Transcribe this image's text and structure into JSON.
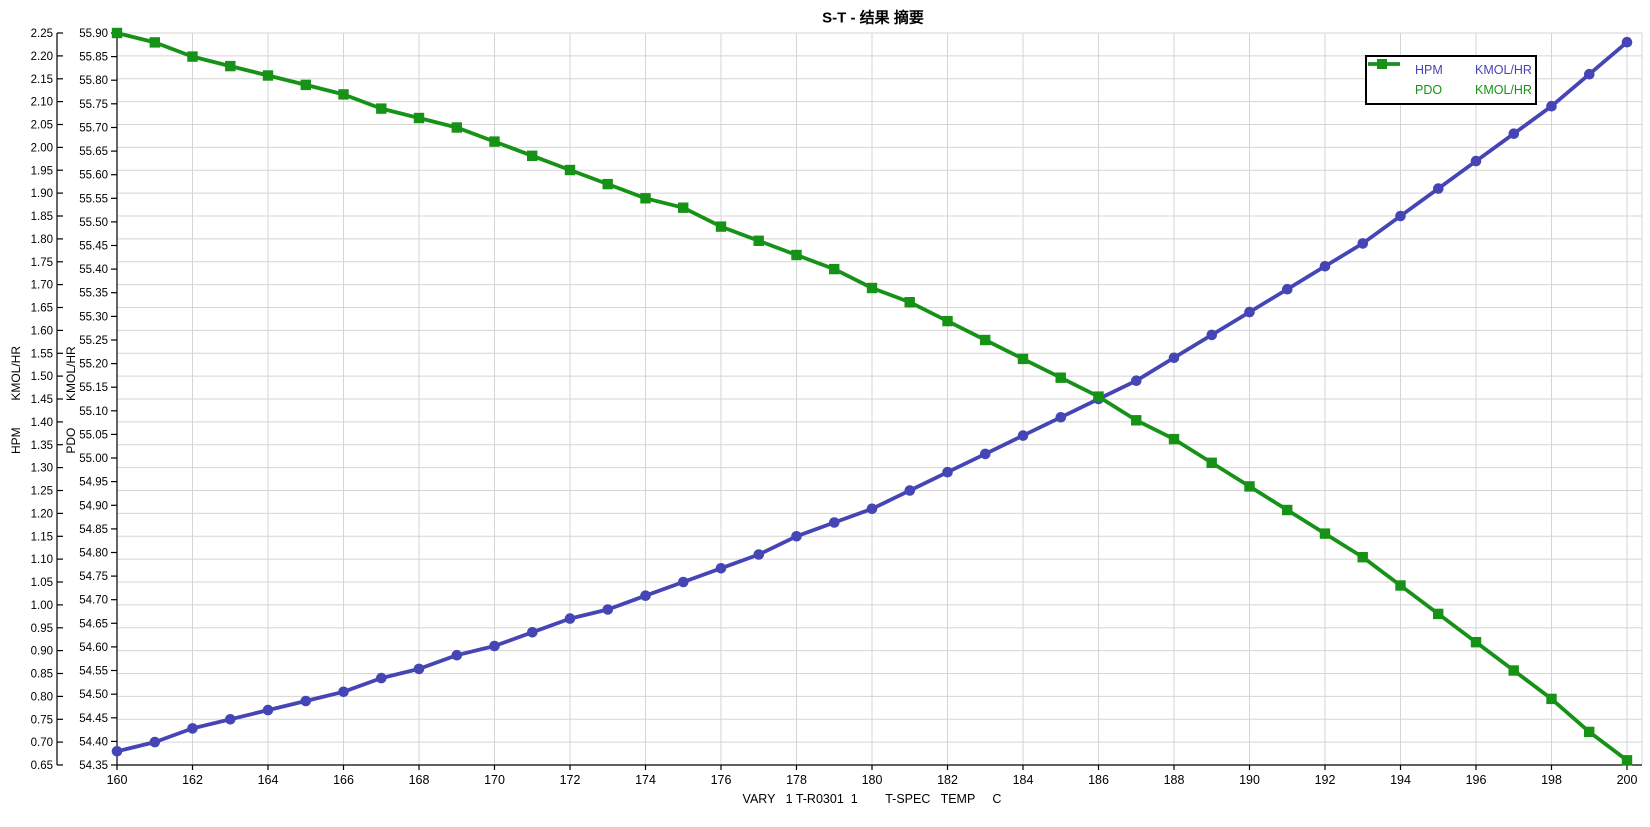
{
  "chart_data": {
    "type": "line",
    "title": "S-T - 结果 摘要",
    "grid": true,
    "legend_position": "top-right",
    "x_axis": {
      "title": "VARY   1 T-R0301  1        T-SPEC   TEMP     C",
      "min": 160,
      "max": 200,
      "tick_step": 2,
      "x": [
        160,
        161,
        162,
        163,
        164,
        165,
        166,
        167,
        168,
        169,
        170,
        171,
        172,
        173,
        174,
        175,
        176,
        177,
        178,
        179,
        180,
        181,
        182,
        183,
        184,
        185,
        186,
        187,
        188,
        189,
        190,
        191,
        192,
        193,
        194,
        195,
        196,
        197,
        198,
        199,
        200
      ]
    },
    "y_axis_outer": {
      "title": "HPM        KMOL/HR",
      "name": "HPM",
      "unit": "KMOL/HR",
      "min": 0.65,
      "max": 2.25,
      "tick_step": 0.05,
      "decimals": 2
    },
    "y_axis_inner": {
      "title": "PDO        KMOL/HR",
      "name": "PDO",
      "unit": "KMOL/HR",
      "min": 54.35,
      "max": 55.9,
      "tick_step": 0.05,
      "decimals": 2
    },
    "series": [
      {
        "name": "HPM",
        "unit": "KMOL/HR",
        "axis": "outer",
        "color": "#4545b5",
        "marker": "circle",
        "values": [
          0.68,
          0.7,
          0.73,
          0.75,
          0.77,
          0.79,
          0.81,
          0.84,
          0.86,
          0.89,
          0.91,
          0.94,
          0.97,
          0.99,
          1.02,
          1.05,
          1.08,
          1.11,
          1.15,
          1.18,
          1.21,
          1.25,
          1.29,
          1.33,
          1.37,
          1.41,
          1.45,
          1.49,
          1.54,
          1.59,
          1.64,
          1.69,
          1.74,
          1.79,
          1.85,
          1.91,
          1.97,
          2.03,
          2.09,
          2.16,
          2.23
        ]
      },
      {
        "name": "PDO",
        "unit": "KMOL/HR",
        "axis": "inner",
        "color": "#169216",
        "marker": "square",
        "values": [
          55.9,
          55.88,
          55.85,
          55.83,
          55.81,
          55.79,
          55.77,
          55.74,
          55.72,
          55.7,
          55.67,
          55.64,
          55.61,
          55.58,
          55.55,
          55.53,
          55.49,
          55.46,
          55.43,
          55.4,
          55.36,
          55.33,
          55.29,
          55.25,
          55.21,
          55.17,
          55.13,
          55.08,
          55.04,
          54.99,
          54.94,
          54.89,
          54.84,
          54.79,
          54.73,
          54.67,
          54.61,
          54.55,
          54.49,
          54.42,
          54.36
        ]
      }
    ]
  },
  "colors": {
    "grid": "#d5d5d5",
    "axis": "#000000",
    "background": "#ffffff"
  }
}
